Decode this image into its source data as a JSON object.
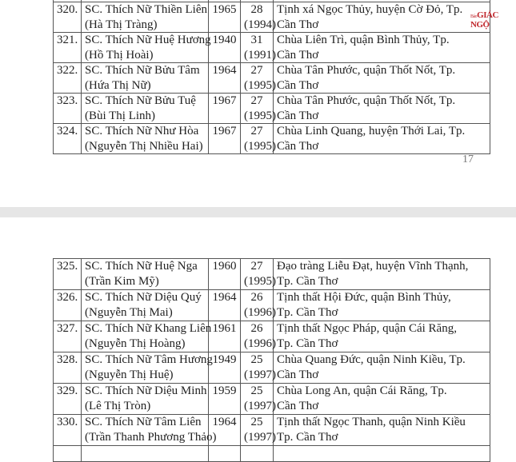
{
  "page1": {
    "rows": [
      {
        "no": "",
        "name": "",
        "secular": "",
        "year": "",
        "age": "",
        "age_year": "",
        "place1": "",
        "place2": ""
      },
      {
        "no": "320.",
        "name": "SC. Thích Nữ Thiền Liên",
        "secular": "(Hà Thị Tràng)",
        "year": "1965",
        "age": "28",
        "age_year": "(1994)",
        "place1": "Tịnh xá Ngọc Thủy, huyện Cờ Đỏ, Tp.",
        "place2": "Cần Thơ"
      },
      {
        "no": "321.",
        "name": "SC. Thích Nữ Huệ Hương",
        "secular": "(Hồ Thị Hoài)",
        "year": "1940",
        "age": "31",
        "age_year": "(1991)",
        "place1": "Chùa Liên Trì, quận Bình Thủy, Tp.",
        "place2": "Cần Thơ"
      },
      {
        "no": "322.",
        "name": "SC. Thích Nữ Bửu Tâm",
        "secular": "(Hứa Thị Nữ)",
        "year": "1964",
        "age": "27",
        "age_year": "(1995)",
        "place1": "Chùa Tân Phước, quận Thốt Nốt, Tp.",
        "place2": "Cần Thơ"
      },
      {
        "no": "323.",
        "name": "SC. Thích Nữ Bửu Tuệ",
        "secular": "(Bùi Thị Linh)",
        "year": "1967",
        "age": "27",
        "age_year": "(1995)",
        "place1": "Chùa Tân Phước, quận Thốt Nốt, Tp.",
        "place2": "Cần Thơ"
      },
      {
        "no": "324.",
        "name": "SC. Thích Nữ Như Hòa",
        "secular": "(Nguyễn Thị Nhiều Hai)",
        "year": "1967",
        "age": "27",
        "age_year": "(1995)",
        "place1": "Chùa Linh Quang, huyện Thới Lai, Tp.",
        "place2": "Cần Thơ"
      }
    ],
    "page_number": "17",
    "watermark": {
      "small": "Báo",
      "big": "GIÁC NGỘ",
      "color": "#c0282d"
    }
  },
  "page2": {
    "rows": [
      {
        "no": "325.",
        "name": "SC. Thích Nữ Huệ Nga",
        "secular": "(Trần Kim Mỹ)",
        "year": "1960",
        "age": "27",
        "age_year": "(1995)",
        "place1": "Đạo tràng Liễu Đạt, huyện Vĩnh Thạnh,",
        "place2": "Tp. Cần Thơ"
      },
      {
        "no": "326.",
        "name": "SC. Thích Nữ Diệu Quý",
        "secular": "(Nguyễn Thị Mai)",
        "year": "1964",
        "age": "26",
        "age_year": "(1996)",
        "place1": "Tịnh thất Hội Đức, quận Bình Thủy,",
        "place2": "Tp. Cần Thơ"
      },
      {
        "no": "327.",
        "name": "SC. Thích Nữ Khang Liên",
        "secular": "(Nguyễn Thị Hoàng)",
        "year": "1961",
        "age": "26",
        "age_year": "(1996)",
        "place1": "Tịnh thất Ngọc Pháp, quận Cái Răng,",
        "place2": "Tp. Cần Thơ"
      },
      {
        "no": "328.",
        "name": "SC. Thích Nữ Tâm Hương",
        "secular": "(Nguyễn Thị Huệ)",
        "year": "1949",
        "age": "25",
        "age_year": "(1997)",
        "place1": "Chùa Quang Đức, quận Ninh Kiều, Tp.",
        "place2": "Cần Thơ"
      },
      {
        "no": "329.",
        "name": "SC. Thích Nữ Diệu Minh",
        "secular": "(Lê Thị Tròn)",
        "year": "1959",
        "age": "25",
        "age_year": "(1997)",
        "place1": "Chùa Long An, quận Cái Răng, Tp.",
        "place2": "Cần Thơ"
      },
      {
        "no": "330.",
        "name": "SC. Thích Nữ Tâm Liên",
        "secular": "(Trần Thanh Phương Thảo)",
        "year": "1964",
        "age": "25",
        "age_year": "(1997)",
        "place1": "Tịnh thất Ngọc Thanh, quận Ninh Kiều",
        "place2": "Tp. Cần Thơ"
      },
      {
        "no": "",
        "name": "",
        "secular": "",
        "year": "",
        "age": "",
        "age_year": "",
        "place1": "",
        "place2": ""
      }
    ]
  }
}
